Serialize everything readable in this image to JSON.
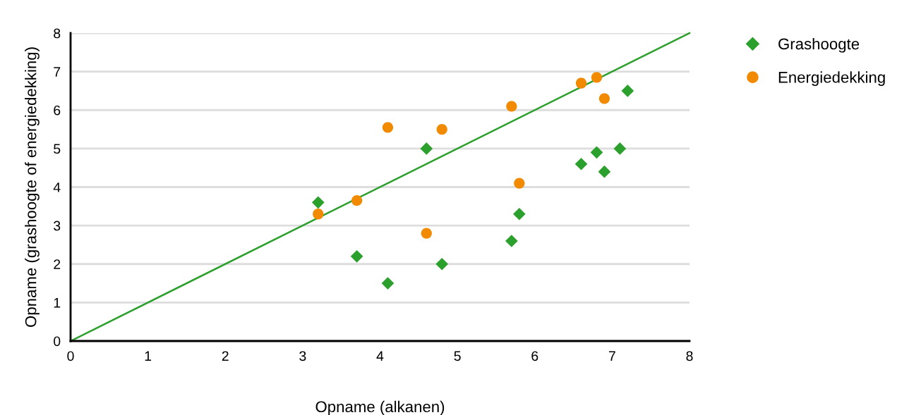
{
  "chart_data": {
    "type": "scatter",
    "xlabel": "Opname (alkanen)",
    "ylabel": "Opname (grashoogte of energiedekking)",
    "xlim": [
      0,
      8
    ],
    "ylim": [
      0,
      8
    ],
    "xticks": [
      0,
      1,
      2,
      3,
      4,
      5,
      6,
      7,
      8
    ],
    "yticks": [
      0,
      1,
      2,
      3,
      4,
      5,
      6,
      7,
      8
    ],
    "grid": "y",
    "legend": "top right",
    "series": [
      {
        "name": "Grashoogte",
        "color": "#2ca02c",
        "marker": "diamond",
        "x": [
          3.2,
          3.7,
          4.1,
          4.6,
          4.8,
          5.7,
          5.8,
          6.6,
          6.8,
          6.9,
          7.1,
          7.2
        ],
        "values": [
          3.6,
          2.2,
          1.5,
          5.0,
          2.0,
          2.6,
          3.3,
          4.6,
          4.9,
          4.4,
          5.0,
          6.5
        ]
      },
      {
        "name": "Energiedekking",
        "color": "#f28a00",
        "marker": "circle",
        "x": [
          3.2,
          3.7,
          4.1,
          4.6,
          4.8,
          5.7,
          5.8,
          6.6,
          6.8,
          6.9
        ],
        "values": [
          3.3,
          3.65,
          5.55,
          2.8,
          5.5,
          6.1,
          4.1,
          6.7,
          6.85,
          6.3
        ]
      },
      {
        "type": "line",
        "color": "#2ca02c",
        "marker": "none",
        "line_style": "solid",
        "x": [
          0,
          8
        ],
        "values": [
          0,
          8
        ]
      }
    ]
  }
}
